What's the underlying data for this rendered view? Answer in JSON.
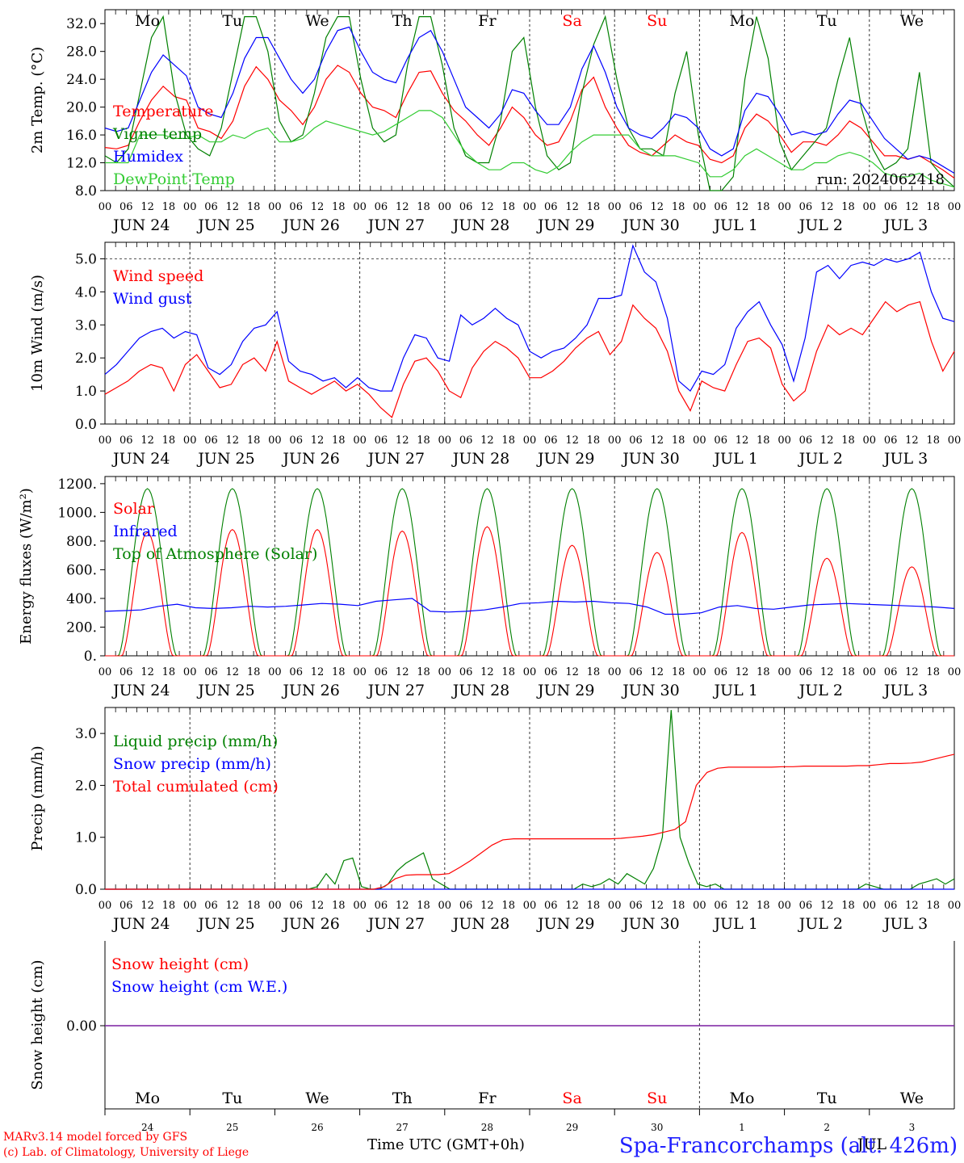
{
  "footer": {
    "credit_line1": "MARv3.14 model forced by GFS",
    "credit_line2": "(c) Lab. of Climatology, University of Liege",
    "time_label": "Time UTC (GMT+0h)",
    "station": "Spa-Francorchamps (alt. 426m)"
  },
  "colors": {
    "red": "#ff0000",
    "blue": "#0000ff",
    "green": "#008000",
    "light_green": "#33cc33",
    "grid": "#444444",
    "weekend": "#ff0000"
  },
  "chart_data": [
    {
      "type": "line",
      "ylabel": "2m Temp. (°C)",
      "yticks": [
        "32.0",
        "28.0",
        "24.0",
        "20.0",
        "16.0",
        "12.0",
        "8.0"
      ],
      "ylim": [
        8,
        34
      ],
      "annotation": "run: 2024062418",
      "day_names": [
        "Mo",
        "Tu",
        "We",
        "Th",
        "Fr",
        "Sa",
        "Su",
        "Mo",
        "Tu",
        "We"
      ],
      "series": [
        {
          "name": "Temperature",
          "color": "#ff0000",
          "values": [
            14.2,
            14,
            14.5,
            18,
            21,
            23,
            21.5,
            21,
            17,
            16.5,
            15.5,
            18,
            23,
            25.8,
            24,
            21,
            19.5,
            17.5,
            20,
            24,
            26,
            25,
            22,
            20,
            19.5,
            18.5,
            22,
            25,
            25.2,
            22,
            19.5,
            18,
            16,
            14.5,
            17,
            20,
            18.5,
            16,
            14.5,
            15,
            18,
            22.5,
            24.3,
            20,
            17,
            14.5,
            13.5,
            13,
            14.5,
            16,
            15,
            14.5,
            12.5,
            12,
            13,
            17,
            19,
            18,
            16,
            13.5,
            15,
            15,
            14.5,
            16,
            18,
            17,
            15,
            13,
            13,
            12.5,
            13,
            12,
            11,
            9.8
          ]
        },
        {
          "name": "Vigne temp",
          "color": "#008000",
          "values": [
            13,
            12,
            14,
            22,
            30,
            33,
            22,
            16,
            14,
            13,
            17,
            25,
            33,
            33,
            28,
            18,
            15,
            16,
            22,
            30,
            33,
            33,
            24,
            17,
            15,
            16,
            26,
            33,
            33,
            26,
            17,
            13,
            12,
            12,
            18,
            28,
            30,
            20,
            13,
            11,
            12,
            22,
            29,
            33,
            24,
            17,
            14,
            14,
            13,
            22,
            28,
            16,
            8,
            8,
            10,
            24,
            33,
            27,
            15,
            11,
            13,
            15,
            17,
            24,
            30,
            20,
            14,
            11,
            12,
            14,
            25,
            12,
            10,
            8.5
          ]
        },
        {
          "name": "Humidex",
          "color": "#0000ff",
          "values": [
            17,
            16.5,
            17,
            21,
            25,
            27.5,
            26,
            24.5,
            20,
            19,
            18.5,
            22,
            27,
            30,
            30,
            27,
            24,
            22,
            24,
            28,
            31,
            31.5,
            28,
            25,
            24,
            23.5,
            27,
            30,
            31,
            28,
            24,
            20,
            18.5,
            17,
            19,
            22.5,
            22,
            19.5,
            17.5,
            17.5,
            20,
            25.5,
            28.8,
            25,
            20,
            17,
            16,
            15.5,
            17,
            19,
            18.5,
            17,
            14,
            13,
            14,
            19.5,
            22,
            21.5,
            19,
            16,
            16.5,
            16,
            16.5,
            19,
            21,
            20.5,
            18,
            15.5,
            14,
            12.5,
            13,
            12.5,
            11.5,
            10.5
          ]
        },
        {
          "name": "DewPoint Temp",
          "color": "#33cc33",
          "values": [
            12,
            12,
            12,
            16,
            16,
            16,
            15.5,
            15.5,
            16,
            15,
            15,
            16,
            15.5,
            16.5,
            17,
            15,
            15,
            15.5,
            17,
            18,
            17.5,
            17,
            16.5,
            16,
            16.5,
            17.5,
            18.5,
            19.5,
            19.5,
            18.5,
            16,
            13.5,
            12,
            11,
            11,
            12,
            12,
            11,
            10.5,
            11.5,
            13.5,
            15,
            16,
            16,
            16,
            16,
            14,
            13,
            13,
            13,
            12.5,
            12,
            10,
            10,
            11,
            13,
            14,
            13,
            12,
            11,
            11,
            12,
            12,
            13,
            13.5,
            13,
            12,
            10.5,
            10,
            10,
            10.5,
            9.5,
            9,
            8.5
          ]
        }
      ]
    },
    {
      "type": "line",
      "ylabel": "10m Wind (m/s)",
      "yticks": [
        "5.0",
        "4.0",
        "3.0",
        "2.0",
        "1.0",
        "0.0"
      ],
      "ylim": [
        0,
        5.5
      ],
      "series": [
        {
          "name": "Wind speed",
          "color": "#ff0000",
          "values": [
            0.9,
            1.1,
            1.3,
            1.6,
            1.8,
            1.7,
            1.0,
            1.8,
            2.1,
            1.6,
            1.1,
            1.2,
            1.8,
            2.0,
            1.6,
            2.5,
            1.3,
            1.1,
            0.9,
            1.1,
            1.3,
            1.0,
            1.2,
            0.9,
            0.5,
            0.2,
            1.2,
            1.9,
            2.0,
            1.6,
            1.0,
            0.8,
            1.7,
            2.2,
            2.5,
            2.3,
            2.0,
            1.4,
            1.4,
            1.6,
            1.9,
            2.3,
            2.6,
            2.8,
            2.1,
            2.5,
            3.6,
            3.2,
            2.9,
            2.2,
            1.0,
            0.4,
            1.3,
            1.1,
            1.0,
            1.8,
            2.5,
            2.6,
            2.3,
            1.2,
            0.7,
            1.0,
            2.2,
            3.0,
            2.7,
            2.9,
            2.7,
            3.2,
            3.7,
            3.4,
            3.6,
            3.7,
            2.5,
            1.6,
            2.2
          ]
        },
        {
          "name": "Wind gust",
          "color": "#0000ff",
          "values": [
            1.5,
            1.8,
            2.2,
            2.6,
            2.8,
            2.9,
            2.6,
            2.8,
            2.7,
            1.7,
            1.5,
            1.8,
            2.5,
            2.9,
            3.0,
            3.4,
            1.9,
            1.6,
            1.5,
            1.3,
            1.4,
            1.1,
            1.4,
            1.1,
            1.0,
            1.0,
            2.0,
            2.7,
            2.6,
            2.0,
            1.9,
            3.3,
            3.0,
            3.2,
            3.5,
            3.2,
            3.0,
            2.2,
            2.0,
            2.2,
            2.3,
            2.6,
            3.0,
            3.8,
            3.8,
            3.9,
            5.4,
            4.6,
            4.3,
            3.2,
            1.3,
            1.0,
            1.6,
            1.5,
            1.8,
            2.9,
            3.4,
            3.7,
            3.0,
            2.4,
            1.3,
            2.6,
            4.6,
            4.8,
            4.4,
            4.8,
            4.9,
            4.8,
            5.0,
            4.9,
            5.0,
            5.2,
            4.0,
            3.2,
            3.1
          ]
        }
      ]
    },
    {
      "type": "line",
      "ylabel": "Energy fluxes (W/m²)",
      "yticks": [
        "1200.",
        "1000.",
        "800.",
        "600.",
        "400.",
        "200.",
        "0."
      ],
      "ylim": [
        0,
        1250
      ],
      "series": [
        {
          "name": "Solar",
          "color": "#ff0000",
          "peaks": [
            860,
            880,
            880,
            870,
            900,
            770,
            720,
            860,
            680,
            620
          ]
        },
        {
          "name": "Infrared",
          "color": "#0000ff",
          "values": [
            310,
            315,
            320,
            345,
            360,
            335,
            330,
            335,
            345,
            340,
            345,
            355,
            365,
            360,
            350,
            380,
            390,
            400,
            310,
            305,
            310,
            320,
            340,
            365,
            370,
            380,
            375,
            380,
            370,
            365,
            340,
            290,
            290,
            300,
            340,
            350,
            330,
            325,
            340,
            355,
            360,
            365,
            360,
            355,
            350,
            345,
            340,
            330
          ]
        },
        {
          "name": "Top of Atmosphere (Solar)",
          "color": "#008000",
          "peak": 1165
        }
      ]
    },
    {
      "type": "line",
      "ylabel": "Precip (mm/h)",
      "yticks": [
        "3.0",
        "2.0",
        "1.0",
        "0.0"
      ],
      "ylim": [
        0,
        3.5
      ],
      "series": [
        {
          "name": "Liquid precip (mm/h)",
          "color": "#008000",
          "values": [
            0,
            0,
            0,
            0,
            0,
            0,
            0,
            0,
            0,
            0,
            0,
            0,
            0,
            0,
            0,
            0,
            0,
            0,
            0,
            0,
            0,
            0,
            0,
            0,
            0.05,
            0.3,
            0.1,
            0.55,
            0.6,
            0.05,
            0,
            0,
            0.1,
            0.35,
            0.5,
            0.6,
            0.7,
            0.2,
            0.1,
            0,
            0,
            0,
            0,
            0,
            0,
            0,
            0,
            0,
            0,
            0,
            0,
            0,
            0,
            0,
            0.1,
            0.05,
            0.1,
            0.2,
            0.1,
            0.3,
            0.2,
            0.1,
            0.4,
            1.0,
            3.45,
            1.0,
            0.5,
            0.1,
            0.05,
            0.1,
            0,
            0,
            0,
            0,
            0,
            0,
            0,
            0,
            0,
            0,
            0,
            0,
            0,
            0,
            0,
            0,
            0.1,
            0.05,
            0,
            0,
            0,
            0,
            0.1,
            0.15,
            0.2,
            0.1,
            0.2
          ]
        },
        {
          "name": "Snow precip (mm/h)",
          "color": "#0000ff",
          "values": [
            0,
            0
          ]
        },
        {
          "name": "Total cumulated (cm)",
          "color": "#ff0000",
          "values": [
            0,
            0,
            0,
            0,
            0,
            0,
            0,
            0,
            0,
            0,
            0,
            0,
            0,
            0,
            0,
            0,
            0,
            0,
            0,
            0,
            0,
            0,
            0,
            0,
            0,
            0,
            0.05,
            0.2,
            0.27,
            0.28,
            0.28,
            0.28,
            0.3,
            0.42,
            0.55,
            0.7,
            0.85,
            0.95,
            0.97,
            0.97,
            0.97,
            0.97,
            0.97,
            0.97,
            0.97,
            0.97,
            0.97,
            0.97,
            0.98,
            1.0,
            1.02,
            1.05,
            1.1,
            1.15,
            1.3,
            2.0,
            2.25,
            2.33,
            2.35,
            2.35,
            2.35,
            2.35,
            2.35,
            2.36,
            2.36,
            2.37,
            2.37,
            2.37,
            2.37,
            2.37,
            2.38,
            2.38,
            2.4,
            2.42,
            2.42,
            2.43,
            2.45,
            2.5,
            2.55,
            2.6
          ]
        }
      ]
    },
    {
      "type": "line",
      "ylabel": "Snow height (cm)",
      "yticks": [
        "0.00"
      ],
      "series": [
        {
          "name": "Snow height (cm)",
          "color": "#ff0000",
          "values": [
            0,
            0
          ]
        },
        {
          "name": "Snow height (cm W.E.)",
          "color": "#0000ff",
          "values": [
            0,
            0
          ]
        }
      ]
    }
  ],
  "x_axis": {
    "hour_ticks": [
      "00",
      "06",
      "12",
      "18"
    ],
    "end_tick": "00",
    "date_labels": [
      "JUN 24",
      "JUN 25",
      "JUN 26",
      "JUN 27",
      "JUN 28",
      "JUN 29",
      "JUN 30",
      "JUL  1",
      "JUL  2",
      "JUL  3"
    ],
    "day_names": [
      "Mo",
      "Tu",
      "We",
      "Th",
      "Fr",
      "Sa",
      "Su",
      "Mo",
      "Tu",
      "We"
    ],
    "weekend_index": [
      5,
      6
    ],
    "day_numbers": [
      "24",
      "25",
      "26",
      "27",
      "28",
      "29",
      "30",
      "1",
      "2",
      "3"
    ],
    "month_label": "JUL"
  }
}
